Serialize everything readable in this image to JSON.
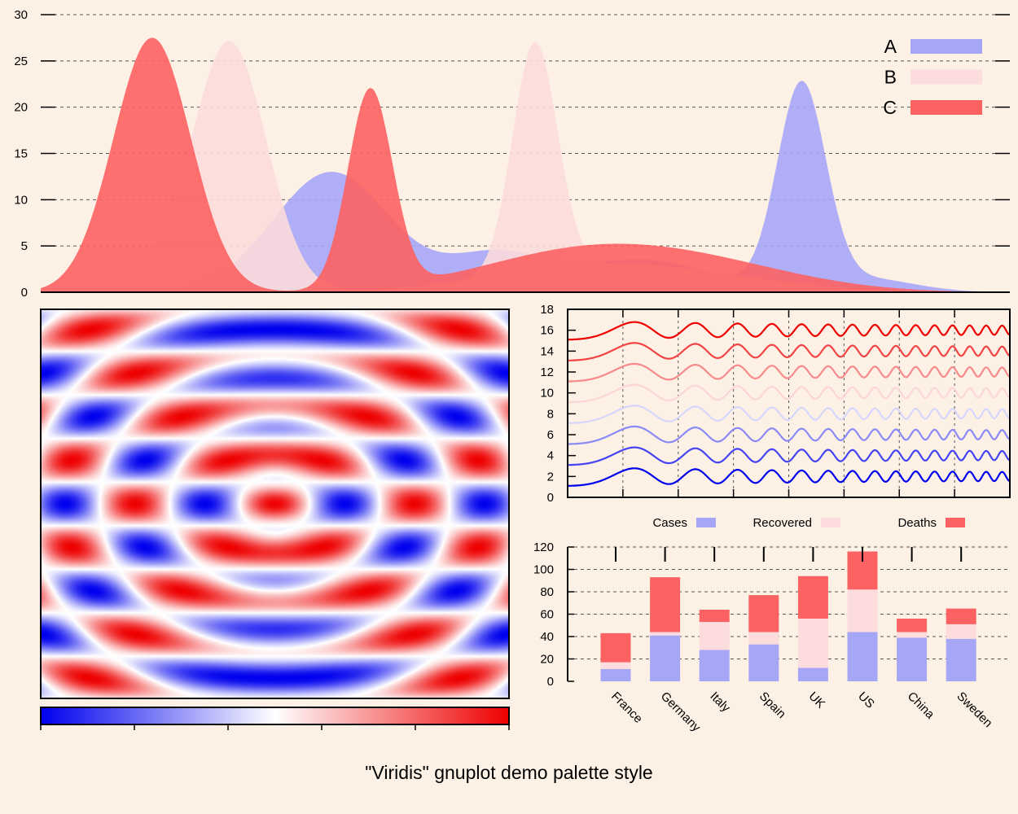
{
  "title": "\"Viridis\" gnuplot demo palette style",
  "colors": {
    "background": "#fdf1e6",
    "blue": "#a6a6f7",
    "pink": "#fcdcdc",
    "red": "#fd6262",
    "deep_blue": "#0000ee",
    "deep_red": "#ee0000"
  },
  "chart_data": [
    {
      "type": "area",
      "title": "",
      "ylim": [
        0,
        30
      ],
      "yticks": [
        "0",
        "5",
        "10",
        "15",
        "20",
        "25",
        "30"
      ],
      "grid": true,
      "legend_position": "top-right",
      "series": [
        {
          "name": "A",
          "color": "#a6a6f7",
          "components": [
            {
              "center": 0.3,
              "width": 0.06,
              "height": 13.0
            },
            {
              "center": 0.47,
              "width": 0.05,
              "height": 4.0
            },
            {
              "center": 0.62,
              "width": 0.07,
              "height": 3.5
            },
            {
              "center": 0.785,
              "width": 0.025,
              "height": 22.0
            },
            {
              "center": 0.85,
              "width": 0.05,
              "height": 1.5
            }
          ]
        },
        {
          "name": "B",
          "color": "#fcdcdc",
          "components": [
            {
              "center": 0.195,
              "width": 0.038,
              "height": 26.8
            },
            {
              "center": 0.1,
              "width": 0.05,
              "height": 2.0
            },
            {
              "center": 0.51,
              "width": 0.023,
              "height": 24.8
            },
            {
              "center": 0.6,
              "width": 0.12,
              "height": 3.0
            }
          ]
        },
        {
          "name": "C",
          "color": "#fd6262",
          "components": [
            {
              "center": 0.115,
              "width": 0.04,
              "height": 27.5
            },
            {
              "center": 0.34,
              "width": 0.023,
              "height": 21.5
            },
            {
              "center": 0.56,
              "width": 0.11,
              "height": 4.3
            },
            {
              "center": 0.7,
              "width": 0.1,
              "height": 2.0
            }
          ]
        }
      ]
    },
    {
      "type": "heatmap",
      "title": "",
      "description": "ring interference pattern, blue-white-red palette",
      "palette": [
        "#0000ee",
        "#ffffff",
        "#ee0000"
      ],
      "xlim": [
        -10,
        10
      ],
      "ylim": [
        -10,
        10
      ],
      "colorbar_range": [
        -1,
        1
      ]
    },
    {
      "type": "line",
      "title": "",
      "ylim": [
        0,
        18
      ],
      "yticks": [
        "0",
        "2",
        "4",
        "6",
        "8",
        "10",
        "12",
        "14",
        "16",
        "18"
      ],
      "grid": true,
      "series": [
        {
          "offset": 16,
          "color": "#ee0000"
        },
        {
          "offset": 14,
          "color": "#f24444"
        },
        {
          "offset": 12,
          "color": "#f78a8a"
        },
        {
          "offset": 10,
          "color": "#fcd6d6"
        },
        {
          "offset": 8,
          "color": "#d6d6fc"
        },
        {
          "offset": 6,
          "color": "#8a8af7"
        },
        {
          "offset": 4,
          "color": "#4444f2"
        },
        {
          "offset": 2,
          "color": "#0000ee"
        }
      ]
    },
    {
      "type": "bar",
      "stacked": true,
      "title": "",
      "ylim": [
        0,
        120
      ],
      "yticks": [
        "0",
        "20",
        "40",
        "60",
        "80",
        "100",
        "120"
      ],
      "categories": [
        "France",
        "Germany",
        "Italy",
        "Spain",
        "UK",
        "US",
        "China",
        "Sweden"
      ],
      "series": [
        {
          "name": "Cases",
          "color": "#a6a6f7",
          "values": [
            11,
            41,
            28,
            33,
            12,
            44,
            39,
            38
          ]
        },
        {
          "name": "Recovered",
          "color": "#fcdcdc",
          "values": [
            6,
            3,
            25,
            11,
            44,
            38,
            5,
            13
          ]
        },
        {
          "name": "Deaths",
          "color": "#fd6262",
          "values": [
            26,
            49,
            11,
            33,
            38,
            34,
            12,
            14
          ]
        }
      ]
    }
  ]
}
